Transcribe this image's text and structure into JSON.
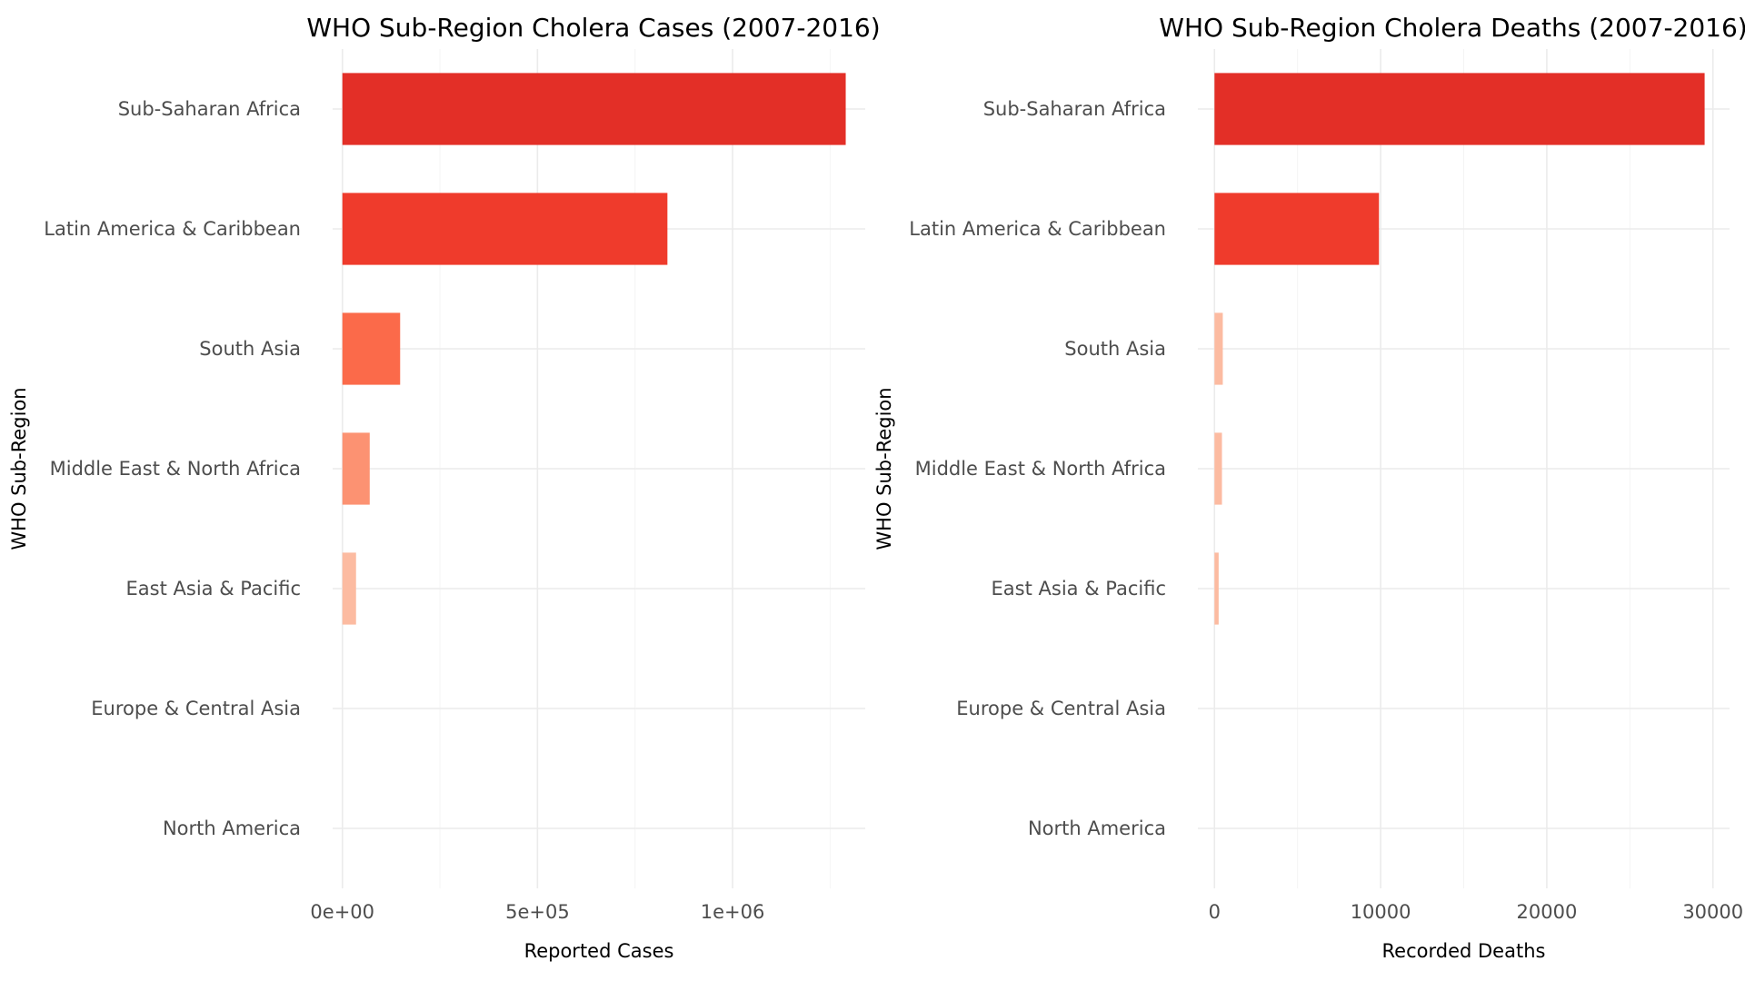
{
  "colors": {
    "background": "#ffffff",
    "grid_major": "#ebebeb",
    "grid_minor": "#f4f4f4",
    "tick_text": "#4d4d4d",
    "title_text": "#000000",
    "fill_scale": [
      "#fcbba1",
      "#fc9272",
      "#fb6a4a",
      "#ef3b2c",
      "#e32f27"
    ]
  },
  "chart_data": [
    {
      "type": "bar",
      "orientation": "horizontal",
      "title": "WHO Sub-Region Cholera Cases (2007-2016)",
      "xlabel": "Reported Cases",
      "ylabel": "WHO Sub-Region",
      "categories": [
        "Sub-Saharan Africa",
        "Latin America & Caribbean",
        "South Asia",
        "Middle East & North Africa",
        "East Asia & Pacific",
        "Europe & Central Asia",
        "North America"
      ],
      "values": [
        1290000,
        833000,
        148000,
        70000,
        35000,
        0,
        0
      ],
      "xlim": [
        -25000,
        1340000
      ],
      "x_ticks": [
        0,
        500000,
        1000000
      ],
      "x_tick_labels": [
        "0e+00",
        "5e+05",
        "1e+06"
      ],
      "x_minor_ticks": [
        250000,
        750000,
        1250000
      ],
      "grid": true,
      "legend": "none"
    },
    {
      "type": "bar",
      "orientation": "horizontal",
      "title": "WHO Sub-Region Cholera Deaths (2007-2016)",
      "xlabel": "Recorded Deaths",
      "ylabel": "WHO Sub-Region",
      "categories": [
        "Sub-Saharan Africa",
        "Latin America & Caribbean",
        "South Asia",
        "Middle East & North Africa",
        "East Asia & Pacific",
        "Europe & Central Asia",
        "North America"
      ],
      "values": [
        29500,
        9900,
        500,
        450,
        250,
        0,
        0
      ],
      "xlim": [
        -1000,
        31000
      ],
      "x_ticks": [
        0,
        10000,
        20000,
        30000
      ],
      "x_tick_labels": [
        "0",
        "10000",
        "20000",
        "30000"
      ],
      "x_minor_ticks": [
        5000,
        15000,
        25000
      ],
      "grid": true,
      "legend": "none"
    }
  ]
}
